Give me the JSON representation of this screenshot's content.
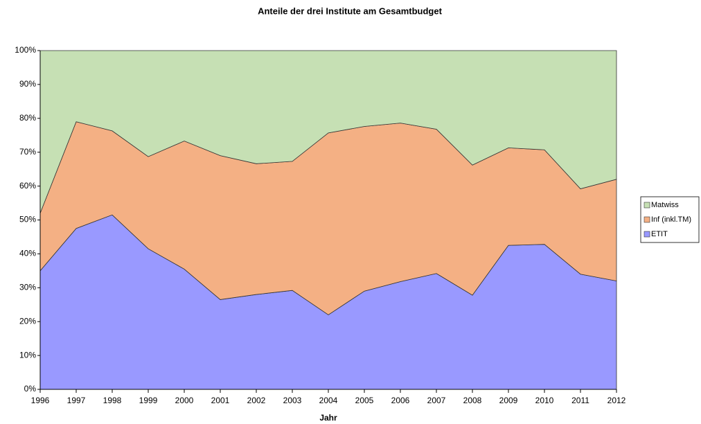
{
  "chart_data": {
    "type": "stacked_area_percent",
    "title": "Anteile der drei Institute am Gesamtbudget",
    "xlabel": "Jahr",
    "x": [
      1996,
      1997,
      1998,
      1999,
      2000,
      2001,
      2002,
      2003,
      2004,
      2005,
      2006,
      2007,
      2008,
      2009,
      2010,
      2011,
      2012
    ],
    "xlim": [
      1996,
      2012
    ],
    "series": [
      {
        "name": "ETIT",
        "color": "#9999ff",
        "values": [
          35,
          47.5,
          51.5,
          41.5,
          35.5,
          26.5,
          28,
          29.2,
          22,
          29,
          31.8,
          34.2,
          27.8,
          42.5,
          42.8,
          34,
          32
        ]
      },
      {
        "name": "Inf (inkl.TM)",
        "color": "#f4b084",
        "values": [
          17,
          31.5,
          24.8,
          27.2,
          37.8,
          42.5,
          38.6,
          38.1,
          53.7,
          48.6,
          46.8,
          42.6,
          38.4,
          28.8,
          27.9,
          25.2,
          30
        ]
      },
      {
        "name": "Matwiss",
        "color": "#c6e0b4",
        "values": [
          48,
          21,
          23.7,
          31.3,
          26.7,
          31,
          33.4,
          32.7,
          24.3,
          22.4,
          21.4,
          23.2,
          33.8,
          28.7,
          29.3,
          40.8,
          38
        ]
      }
    ],
    "ylim": [
      0,
      100
    ],
    "yticks": [
      {
        "value": 0,
        "label": "0%"
      },
      {
        "value": 10,
        "label": "10%"
      },
      {
        "value": 20,
        "label": "20%"
      },
      {
        "value": 30,
        "label": "30%"
      },
      {
        "value": 40,
        "label": "40%"
      },
      {
        "value": 50,
        "label": "50%"
      },
      {
        "value": 60,
        "label": "60%"
      },
      {
        "value": 70,
        "label": "70%"
      },
      {
        "value": 80,
        "label": "80%"
      },
      {
        "value": 90,
        "label": "90%"
      },
      {
        "value": 100,
        "label": "100%"
      }
    ],
    "legend": "right"
  }
}
